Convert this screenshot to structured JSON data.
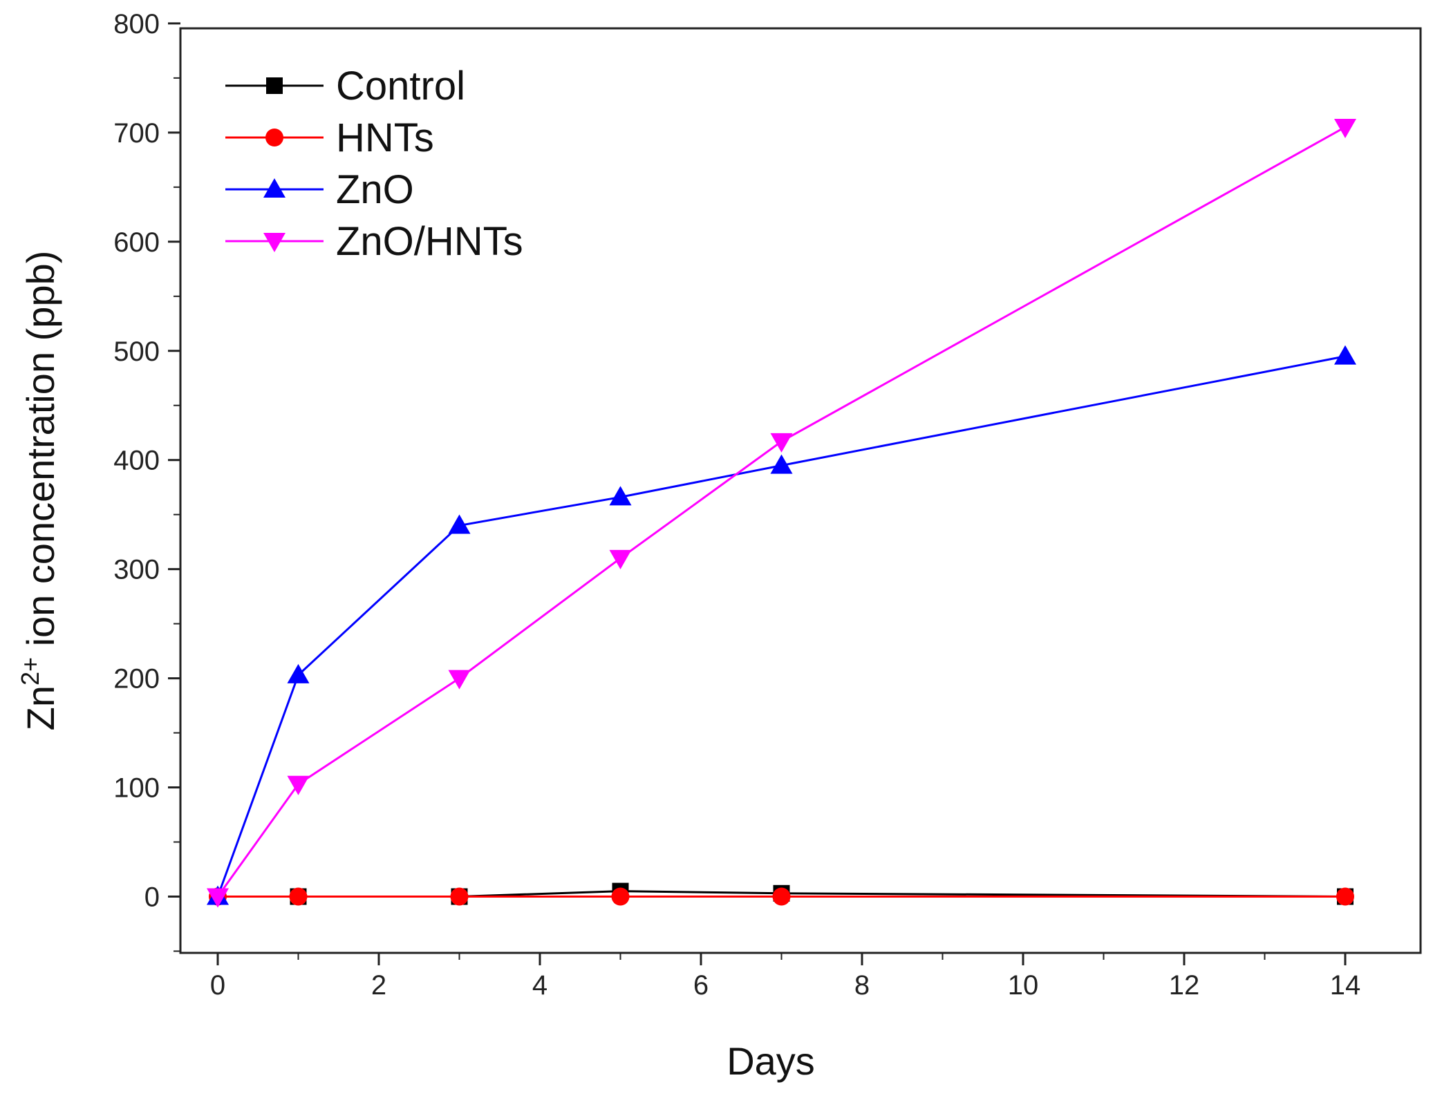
{
  "chart_data": {
    "type": "line",
    "title": "",
    "xlabel": "Days",
    "ylabel_main": "Zn",
    "ylabel_sup": "2+",
    "ylabel_rest": " ion concentration (ppb)",
    "xlim": [
      -0.5,
      15.5
    ],
    "ylim": [
      -50,
      800
    ],
    "xticks": [
      0,
      2,
      4,
      6,
      8,
      10,
      12,
      14
    ],
    "yticks": [
      0,
      100,
      200,
      300,
      400,
      500,
      600,
      700,
      800
    ],
    "grid": false,
    "legend_position": "top-left",
    "x": [
      0,
      1,
      3,
      5,
      7,
      14
    ],
    "series": [
      {
        "name": "Control",
        "color": "#000000",
        "marker": "square",
        "values": [
          0,
          0,
          0,
          5,
          3,
          0
        ]
      },
      {
        "name": "HNTs",
        "color": "#ff0000",
        "marker": "circle",
        "values": [
          0,
          0,
          0,
          0,
          0,
          0
        ]
      },
      {
        "name": "ZnO",
        "color": "#0000ff",
        "marker": "triangle-up",
        "values": [
          0,
          203,
          340,
          366,
          395,
          495
        ]
      },
      {
        "name": "ZnO/HNTs",
        "color": "#ff00ff",
        "marker": "triangle-down",
        "values": [
          0,
          103,
          200,
          310,
          417,
          705
        ]
      }
    ]
  }
}
